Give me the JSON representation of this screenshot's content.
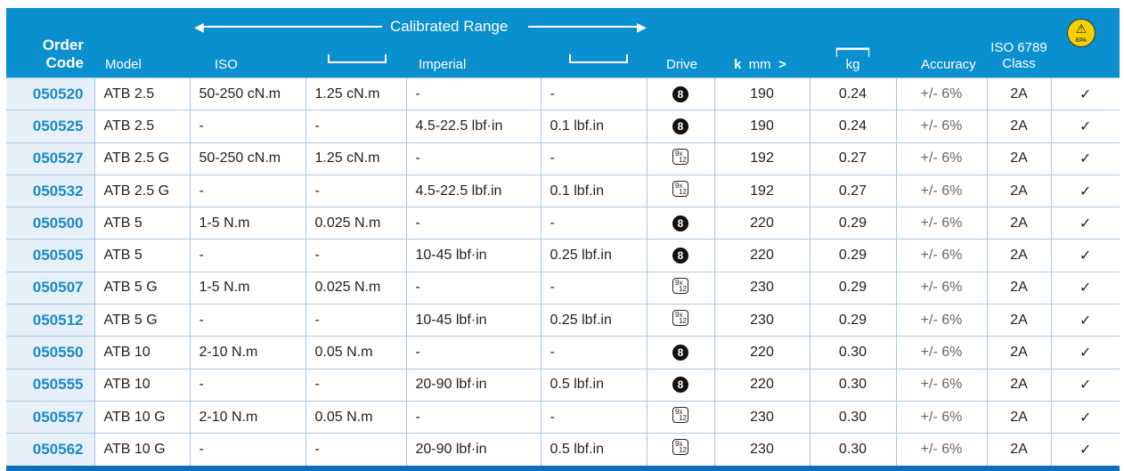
{
  "header": {
    "order_code": [
      "Order",
      "Code"
    ],
    "model": "Model",
    "calibrated_range": "Calibrated Range",
    "iso": "ISO",
    "imperial": "Imperial",
    "drive": "Drive",
    "length_unit": "mm",
    "weight_unit": "kg",
    "accuracy": "Accuracy",
    "class": [
      "ISO 6789",
      "Class"
    ],
    "esd_logo_text": "EPA"
  },
  "colors": {
    "header_bg": "#0a8fcf",
    "code_text": "#1a8ac8",
    "code_bg": "#e7f0f9",
    "esd": "#f5d000"
  },
  "rows": [
    {
      "code": "050520",
      "model": "ATB 2.5",
      "iso": "50-250 cN.m",
      "iso_res": "1.25 cN.m",
      "imperial": "-",
      "imp_res": "-",
      "drive": "8",
      "mm": "190",
      "kg": "0.24",
      "accuracy": "+/- 6%",
      "class": "2A",
      "esd": "✓"
    },
    {
      "code": "050525",
      "model": "ATB 2.5",
      "iso": "-",
      "iso_res": "-",
      "imperial": "4.5-22.5 lbf·in",
      "imp_res": "0.1 lbf.in",
      "drive": "8",
      "mm": "190",
      "kg": "0.24",
      "accuracy": "+/- 6%",
      "class": "2A",
      "esd": "✓"
    },
    {
      "code": "050527",
      "model": "ATB 2.5 G",
      "iso": "50-250 cN.m",
      "iso_res": "1.25 cN.m",
      "imperial": "-",
      "imp_res": "-",
      "drive": "9x12",
      "mm": "192",
      "kg": "0.27",
      "accuracy": "+/- 6%",
      "class": "2A",
      "esd": "✓"
    },
    {
      "code": "050532",
      "model": "ATB 2.5 G",
      "iso": "-",
      "iso_res": "-",
      "imperial": "4.5-22.5 lbf.in",
      "imp_res": "0.1 lbf.in",
      "drive": "9x12",
      "mm": "192",
      "kg": "0.27",
      "accuracy": "+/- 6%",
      "class": "2A",
      "esd": "✓"
    },
    {
      "code": "050500",
      "model": "ATB 5",
      "iso": "1-5 N.m",
      "iso_res": "0.025 N.m",
      "imperial": "-",
      "imp_res": "-",
      "drive": "8",
      "mm": "220",
      "kg": "0.29",
      "accuracy": "+/- 6%",
      "class": "2A",
      "esd": "✓"
    },
    {
      "code": "050505",
      "model": "ATB 5",
      "iso": "-",
      "iso_res": "-",
      "imperial": "10-45 lbf·in",
      "imp_res": "0.25 lbf.in",
      "drive": "8",
      "mm": "220",
      "kg": "0.29",
      "accuracy": "+/- 6%",
      "class": "2A",
      "esd": "✓"
    },
    {
      "code": "050507",
      "model": "ATB 5 G",
      "iso": "1-5 N.m",
      "iso_res": "0.025 N.m",
      "imperial": "-",
      "imp_res": "-",
      "drive": "9x12",
      "mm": "230",
      "kg": "0.29",
      "accuracy": "+/- 6%",
      "class": "2A",
      "esd": "✓"
    },
    {
      "code": "050512",
      "model": "ATB 5 G",
      "iso": "-",
      "iso_res": "-",
      "imperial": "10-45 lbf·in",
      "imp_res": "0.25 lbf.in",
      "drive": "9x12",
      "mm": "230",
      "kg": "0.29",
      "accuracy": "+/- 6%",
      "class": "2A",
      "esd": "✓"
    },
    {
      "code": "050550",
      "model": "ATB 10",
      "iso": "2-10 N.m",
      "iso_res": "0.05 N.m",
      "imperial": "-",
      "imp_res": "-",
      "drive": "8",
      "mm": "220",
      "kg": "0.30",
      "accuracy": "+/- 6%",
      "class": "2A",
      "esd": "✓"
    },
    {
      "code": "050555",
      "model": "ATB 10",
      "iso": "-",
      "iso_res": "-",
      "imperial": "20-90 lbf·in",
      "imp_res": "0.5 lbf.in",
      "drive": "8",
      "mm": "220",
      "kg": "0.30",
      "accuracy": "+/- 6%",
      "class": "2A",
      "esd": "✓"
    },
    {
      "code": "050557",
      "model": "ATB 10 G",
      "iso": "2-10 N.m",
      "iso_res": "0.05 N.m",
      "imperial": "-",
      "imp_res": "-",
      "drive": "9x12",
      "mm": "230",
      "kg": "0.30",
      "accuracy": "+/- 6%",
      "class": "2A",
      "esd": "✓"
    },
    {
      "code": "050562",
      "model": "ATB 10 G",
      "iso": "-",
      "iso_res": "-",
      "imperial": "20-90 lbf·in",
      "imp_res": "0.5 lbf.in",
      "drive": "9x12",
      "mm": "230",
      "kg": "0.30",
      "accuracy": "+/- 6%",
      "class": "2A",
      "esd": "✓"
    }
  ]
}
